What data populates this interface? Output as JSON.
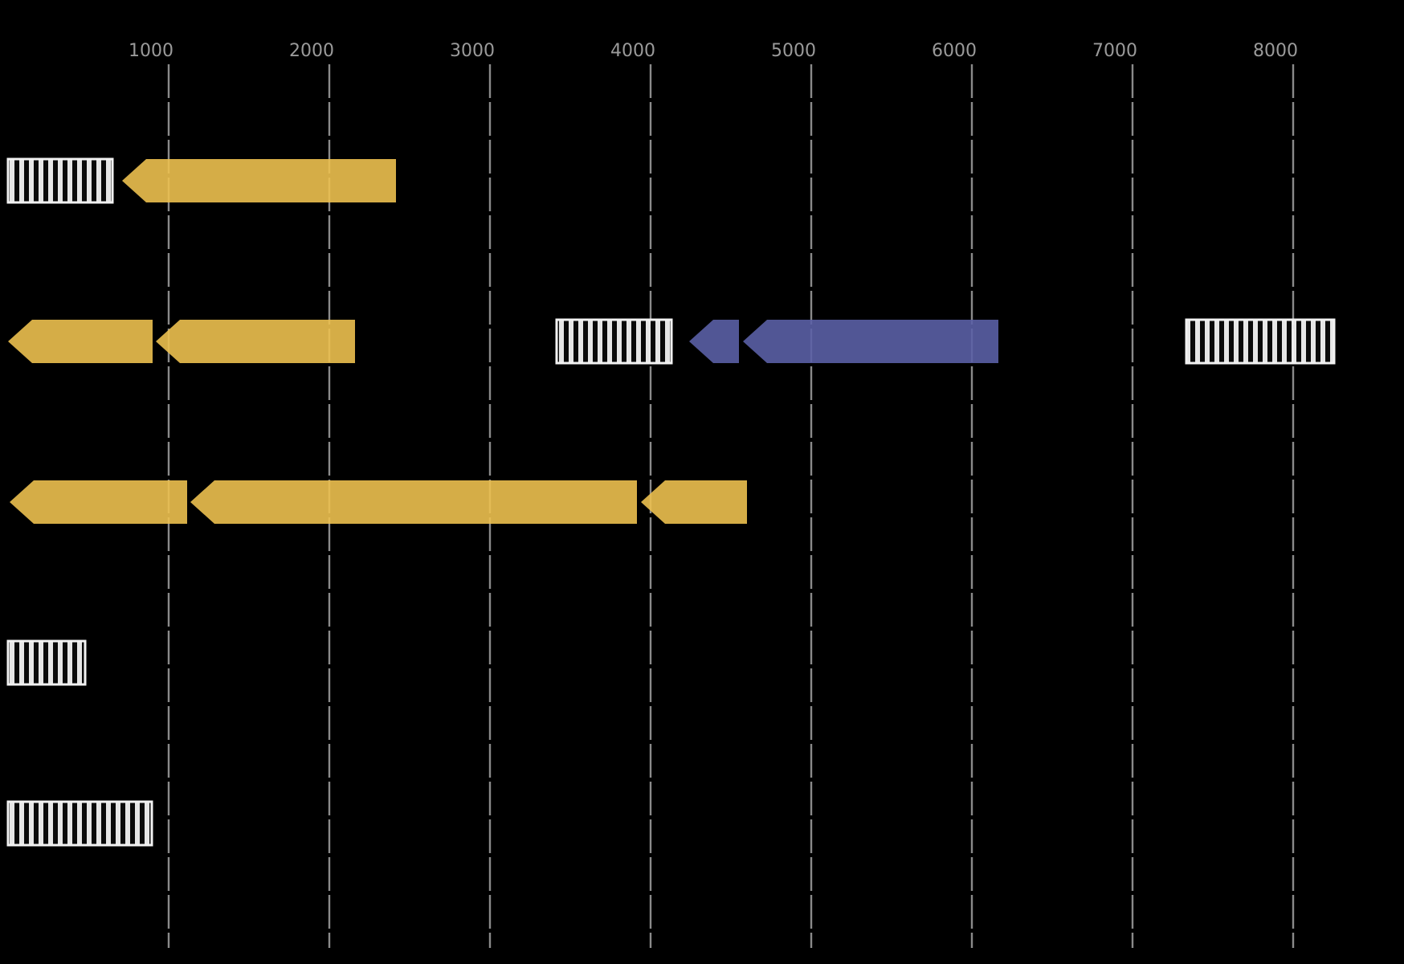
{
  "figure": {
    "background_color": "#000000",
    "gridline_color": "#8a8a8a",
    "tick_label_color": "#9a9a9a"
  },
  "palette": {
    "gene_yellow": "#ECC04F",
    "gene_purple": "#5A5FA5",
    "hatch_box_bg": "#f2f2f2",
    "hatch_box_stripe": "#0b0b0b",
    "hatch_box_border": "#f2f2f2"
  },
  "chart_data": {
    "type": "gene-annotation-track",
    "title": "",
    "xlabel": "",
    "ylabel": "",
    "legend": null,
    "grid": "vertical-dashed",
    "axis": {
      "position": "top",
      "tick_values": [
        1000,
        2000,
        3000,
        4000,
        5000,
        6000,
        7000,
        8000
      ],
      "tick_labels": [
        "1000",
        "2000",
        "3000",
        "4000",
        "5000",
        "6000",
        "7000",
        "8000"
      ],
      "range": [
        0,
        8690
      ]
    },
    "rows": [
      {
        "row_index": 0,
        "features": [
          {
            "kind": "hatched-box",
            "start": 0,
            "end": 650,
            "strand": 0,
            "color": "hatch"
          },
          {
            "kind": "arrow",
            "start": 710,
            "end": 2415,
            "strand": -1,
            "color": "gene_yellow"
          }
        ]
      },
      {
        "row_index": 1,
        "features": [
          {
            "kind": "arrow",
            "start": 0,
            "end": 900,
            "strand": -1,
            "color": "gene_yellow"
          },
          {
            "kind": "arrow",
            "start": 920,
            "end": 2160,
            "strand": -1,
            "color": "gene_yellow"
          },
          {
            "kind": "hatched-box",
            "start": 3415,
            "end": 4130,
            "strand": 0,
            "color": "hatch"
          },
          {
            "kind": "arrow",
            "start": 4240,
            "end": 4550,
            "strand": -1,
            "color": "gene_purple"
          },
          {
            "kind": "arrow",
            "start": 4575,
            "end": 6165,
            "strand": -1,
            "color": "gene_purple"
          },
          {
            "kind": "hatched-box",
            "start": 7335,
            "end": 8255,
            "strand": 0,
            "color": "hatch"
          }
        ]
      },
      {
        "row_index": 2,
        "features": [
          {
            "kind": "arrow",
            "start": 10,
            "end": 1115,
            "strand": -1,
            "color": "gene_yellow"
          },
          {
            "kind": "arrow",
            "start": 1135,
            "end": 3915,
            "strand": -1,
            "color": "gene_yellow"
          },
          {
            "kind": "arrow",
            "start": 3940,
            "end": 4600,
            "strand": -1,
            "color": "gene_yellow"
          }
        ]
      },
      {
        "row_index": 3,
        "features": [
          {
            "kind": "hatched-box",
            "start": 0,
            "end": 480,
            "strand": 0,
            "color": "hatch"
          }
        ]
      },
      {
        "row_index": 4,
        "features": [
          {
            "kind": "hatched-box",
            "start": 0,
            "end": 895,
            "strand": 0,
            "color": "hatch"
          }
        ]
      }
    ]
  }
}
